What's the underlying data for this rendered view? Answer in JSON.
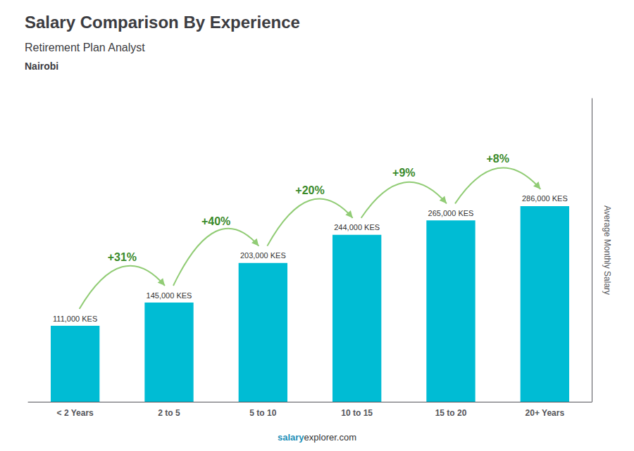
{
  "chart_data": {
    "type": "bar",
    "title": "Salary Comparison By Experience",
    "subtitle": "Retirement Plan Analyst",
    "city": "Nairobi",
    "y_label": "Average Monthly Salary",
    "footer": [
      "salary",
      "explorer.com"
    ],
    "categories": [
      "< 2 Years",
      "2 to 5",
      "5 to 10",
      "10 to 15",
      "15 to 20",
      "20+ Years"
    ],
    "values": [
      111000,
      145000,
      203000,
      244000,
      265000,
      286000
    ],
    "value_labels": [
      "111,000 KES",
      "145,000 KES",
      "203,000 KES",
      "244,000 KES",
      "265,000 KES",
      "286,000 KES"
    ],
    "data_labels": true,
    "change_labels": [
      "+31%",
      "+40%",
      "+20%",
      "+9%",
      "+8%"
    ],
    "color": "#00BCD4",
    "ylim": [
      0,
      443300
    ],
    "grid": false,
    "tick_labels": "x"
  }
}
